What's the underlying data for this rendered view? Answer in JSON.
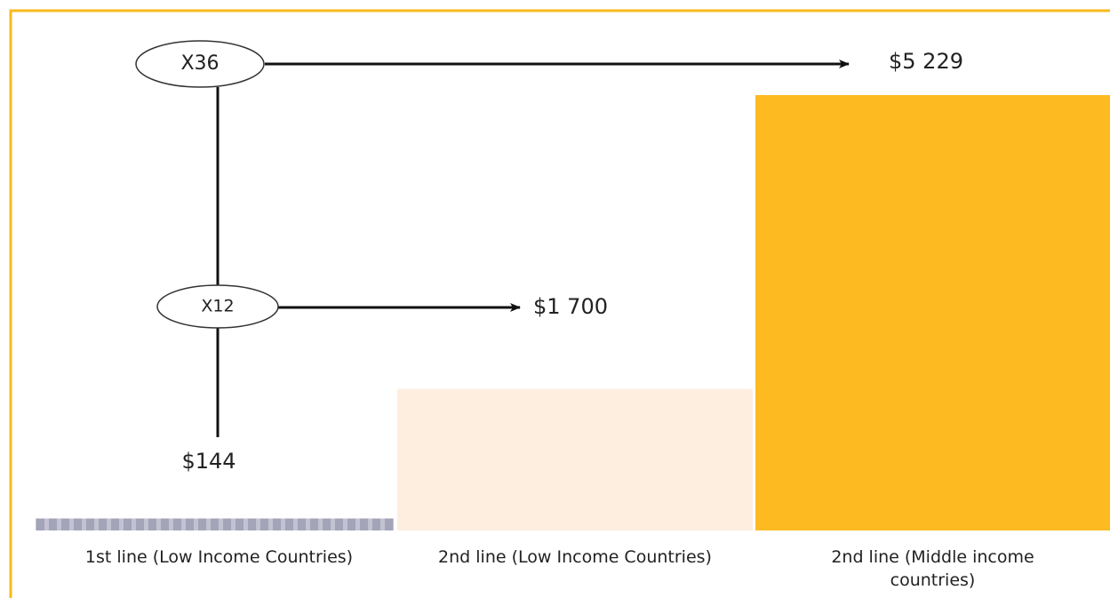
{
  "chart_data": {
    "type": "bar",
    "categories": [
      "1st line (Low Income Countries)",
      "2nd line (Low Income Countries)",
      "2nd line (Middle income countries)"
    ],
    "values": [
      144,
      1700,
      5229
    ],
    "value_labels": [
      "$144",
      "$1 700",
      "$5 229"
    ],
    "colors": [
      "#a4a4b8",
      "#fdeee0",
      "#fdbb21"
    ],
    "annotations": [
      "X36",
      "X12"
    ]
  }
}
